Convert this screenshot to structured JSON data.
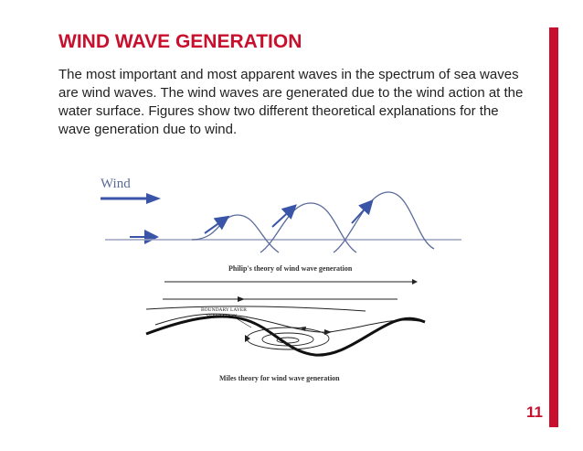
{
  "slide": {
    "title": "WIND WAVE GENERATION",
    "body": "The most important and most apparent waves in the spectrum of sea waves are wind waves. The wind waves are generated due to the wind action at the water surface. Figures show two different theoretical explanations for the wave generation due to wind.",
    "page_number": "11",
    "accent_color": "#c8102e"
  },
  "figure": {
    "wind_label": "Wind",
    "philips_caption": "Philip's theory of wind wave generation",
    "boundary_label_line1": "BOUNDARY LAYER",
    "boundary_label_line2": "SEPARATION",
    "miles_caption": "Miles theory for wind wave generation"
  }
}
